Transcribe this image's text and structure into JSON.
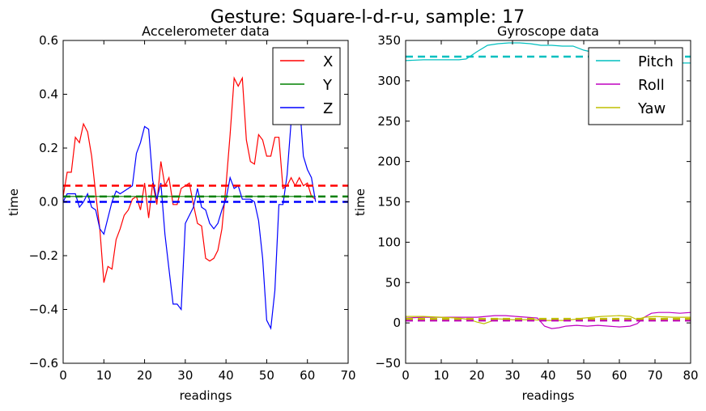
{
  "figure": {
    "suptitle": "Gesture: Square-l-d-r-u, sample: 17"
  },
  "chart_data": [
    {
      "type": "line",
      "title": "Accelerometer data",
      "xlabel": "readings",
      "ylabel": "time",
      "xlim": [
        0,
        70
      ],
      "ylim": [
        -0.6,
        0.6
      ],
      "xticks": [
        0,
        10,
        20,
        30,
        40,
        50,
        60,
        70
      ],
      "yticks": [
        -0.6,
        -0.4,
        -0.2,
        0.0,
        0.2,
        0.4,
        0.6
      ],
      "ytick_labels": [
        "−0.6",
        "−0.4",
        "−0.2",
        "0.0",
        "0.2",
        "0.4",
        "0.6"
      ],
      "grid": false,
      "legend": "top-right",
      "series": [
        {
          "name": "X",
          "color": "#ff0000",
          "x": [
            0,
            1,
            2,
            3,
            4,
            5,
            6,
            7,
            8,
            9,
            10,
            11,
            12,
            13,
            14,
            15,
            16,
            17,
            18,
            19,
            20,
            21,
            22,
            23,
            24,
            25,
            26,
            27,
            28,
            29,
            30,
            31,
            32,
            33,
            34,
            35,
            36,
            37,
            38,
            39,
            40,
            41,
            42,
            43,
            44,
            45,
            46,
            47,
            48,
            49,
            50,
            51,
            52,
            53,
            54,
            55,
            56,
            57,
            58,
            59,
            60,
            61,
            62
          ],
          "y": [
            0.02,
            0.11,
            0.11,
            0.24,
            0.22,
            0.29,
            0.26,
            0.17,
            0.03,
            -0.1,
            -0.3,
            -0.24,
            -0.25,
            -0.14,
            -0.1,
            -0.05,
            -0.03,
            0.01,
            0.02,
            -0.03,
            0.07,
            -0.06,
            0.07,
            -0.01,
            0.15,
            0.06,
            0.09,
            -0.01,
            -0.01,
            0.05,
            0.06,
            0.07,
            -0.01,
            -0.08,
            -0.09,
            -0.21,
            -0.22,
            -0.21,
            -0.18,
            -0.1,
            0.06,
            0.25,
            0.46,
            0.43,
            0.46,
            0.23,
            0.15,
            0.14,
            0.25,
            0.23,
            0.17,
            0.17,
            0.24,
            0.24,
            0.05,
            0.06,
            0.09,
            0.06,
            0.09,
            0.06,
            0.07,
            0.02,
            0.01
          ]
        },
        {
          "name": "Y",
          "color": "#008000",
          "x": [
            0,
            10,
            20,
            30,
            40,
            50,
            60,
            62
          ],
          "y": [
            0.02,
            0.02,
            0.02,
            0.02,
            0.02,
            0.02,
            0.02,
            0.02
          ]
        },
        {
          "name": "Z",
          "color": "#0000ff",
          "x": [
            0,
            1,
            2,
            3,
            4,
            5,
            6,
            7,
            8,
            9,
            10,
            11,
            12,
            13,
            14,
            15,
            16,
            17,
            18,
            19,
            20,
            21,
            22,
            23,
            24,
            25,
            26,
            27,
            28,
            29,
            30,
            31,
            32,
            33,
            34,
            35,
            36,
            37,
            38,
            39,
            40,
            41,
            42,
            43,
            44,
            45,
            46,
            47,
            48,
            49,
            50,
            51,
            52,
            53,
            54,
            55,
            56,
            57,
            58,
            59,
            60,
            61,
            62
          ],
          "y": [
            0.0,
            0.03,
            0.03,
            0.03,
            -0.02,
            0.0,
            0.03,
            -0.02,
            -0.03,
            -0.1,
            -0.12,
            -0.06,
            0.0,
            0.04,
            0.03,
            0.04,
            0.05,
            0.06,
            0.18,
            0.22,
            0.28,
            0.27,
            0.08,
            0.01,
            0.07,
            -0.12,
            -0.25,
            -0.38,
            -0.38,
            -0.4,
            -0.08,
            -0.05,
            -0.02,
            0.05,
            -0.02,
            -0.03,
            -0.08,
            -0.1,
            -0.08,
            -0.03,
            0.01,
            0.09,
            0.05,
            0.06,
            0.01,
            0.01,
            0.01,
            0.0,
            -0.07,
            -0.21,
            -0.44,
            -0.47,
            -0.33,
            -0.01,
            -0.01,
            0.1,
            0.3,
            0.32,
            0.38,
            0.17,
            0.12,
            0.09,
            0.0
          ]
        }
      ],
      "reference_lines": [
        {
          "color": "#ff0000",
          "y": 0.06,
          "style": "dashed"
        },
        {
          "color": "#008000",
          "y": 0.02,
          "style": "dashed"
        },
        {
          "color": "#0000ff",
          "y": 0.0,
          "style": "dashed"
        }
      ]
    },
    {
      "type": "line",
      "title": "Gyroscope data",
      "xlabel": "readings",
      "ylabel": "time",
      "xlim": [
        0,
        80
      ],
      "ylim": [
        -50,
        350
      ],
      "xticks": [
        0,
        10,
        20,
        30,
        40,
        50,
        60,
        70,
        80
      ],
      "yticks": [
        -50,
        0,
        50,
        100,
        150,
        200,
        250,
        300,
        350
      ],
      "ytick_labels": [
        "−50",
        "0",
        "50",
        "100",
        "150",
        "200",
        "250",
        "300",
        "350"
      ],
      "grid": false,
      "legend": "top-right",
      "series": [
        {
          "name": "Pitch",
          "color": "#00bfbf",
          "x": [
            0,
            5,
            10,
            15,
            17,
            20,
            23,
            26,
            29,
            32,
            35,
            38,
            41,
            44,
            47,
            50,
            53,
            56,
            60,
            65,
            70,
            75,
            80
          ],
          "y": [
            325,
            326,
            326,
            326,
            327,
            336,
            344,
            346,
            347,
            347,
            346,
            344,
            344,
            343,
            343,
            338,
            335,
            330,
            330,
            328,
            323,
            322,
            322
          ]
        },
        {
          "name": "Roll",
          "color": "#bf00bf",
          "x": [
            0,
            5,
            10,
            15,
            20,
            25,
            28,
            31,
            34,
            37,
            39,
            41,
            43,
            45,
            48,
            51,
            54,
            57,
            60,
            63,
            65,
            67,
            69,
            71,
            74,
            77,
            80
          ],
          "y": [
            6,
            7,
            7,
            7,
            7,
            9,
            9,
            8,
            7,
            6,
            -4,
            -7,
            -6,
            -4,
            -3,
            -4,
            -3,
            -4,
            -5,
            -4,
            -1,
            7,
            12,
            13,
            13,
            12,
            13
          ]
        },
        {
          "name": "Yaw",
          "color": "#bfbf00",
          "x": [
            0,
            5,
            10,
            15,
            18,
            20,
            22,
            24,
            26,
            30,
            35,
            40,
            45,
            50,
            55,
            60,
            63,
            65,
            67,
            70,
            75,
            80
          ],
          "y": [
            8,
            8,
            7,
            6,
            4,
            1,
            -1,
            2,
            5,
            4,
            4,
            3,
            3,
            6,
            8,
            9,
            8,
            4,
            7,
            8,
            7,
            7
          ]
        }
      ],
      "reference_lines": [
        {
          "color": "#00bfbf",
          "y": 330,
          "style": "dashed"
        },
        {
          "color": "#bf00bf",
          "y": 3,
          "style": "dashed"
        },
        {
          "color": "#bfbf00",
          "y": 5,
          "style": "dashed"
        }
      ]
    }
  ]
}
